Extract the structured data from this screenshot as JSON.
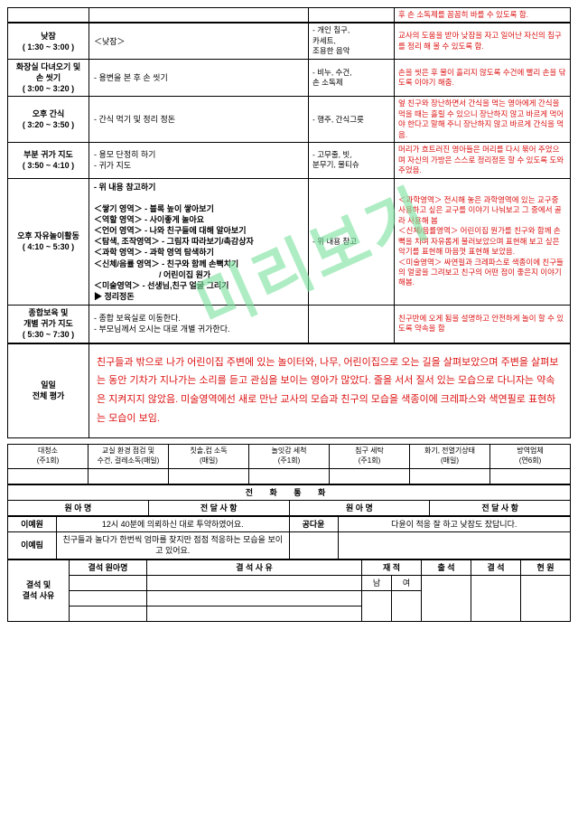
{
  "watermark": "미리보기",
  "schedule": {
    "topnote": "후 손 소독제를 꼼꼼히 바를 수 있도록 함.",
    "rows": [
      {
        "time": "낮잠\n( 1:30 ~ 3:00 )",
        "act": "＜낮잠＞",
        "mat": "- 개인 침구,\n카세트,\n조용한 음악",
        "note": "교사의 도움을 받아 낮잠을 자고 일어난 자신의 침구를 정리 해 볼 수 있도록 함."
      },
      {
        "time": "화장실 다녀오기 및\n손 씻기\n( 3:00 ~ 3:20 )",
        "act": "- 용변을 본 후 손 씻기",
        "mat": "- 비누, 수건,\n손 소독제",
        "note": "손을 씻은 후 물이 흘리지 않도록 수건에 빨리 손을 닦도록 이야기 해줌."
      },
      {
        "time": "오후 간식\n( 3:20 ~ 3:50 )",
        "act": "- 간식 먹기 및 정리 정돈",
        "mat": "- 행주, 간식그릇",
        "note": "엎 친구와 장난하면서 간식을 먹는 영아에게 간식을 먹을 때는 흘릴 수 있으니 장난하지 않고 바르게 먹어야 한다고 말해 주니 장난하지 않고 바르게 간식을 먹음."
      },
      {
        "time": "부분 귀가 지도\n( 3:50 ~ 4:10 )",
        "act": "- 용모 단정히 하기\n- 귀가 지도",
        "mat": "- 고무줄, 빗,\n분무기, 물티슈",
        "note": "머리가 흐트러진 영아들은 머리를 다시 묶어 주었으며 자신의 가방은 스스로 정리정돈 할 수 있도록 도와주었음."
      },
      {
        "time": "오후 자유놀이활동\n( 4:10 ~ 5:30 )",
        "act_html": true,
        "act": [
          "- 위 내용 참고하기",
          "",
          "＜쌓기 영역＞ - 블록 높이 쌓아보기",
          "＜역할 영역＞ - 사이좋게 놀아요",
          "＜언어 영역＞ - 나와 친구들에 대해 알아보기",
          "＜탐색, 조작영역＞ - 그림자 따라보기/촉감상자",
          "＜과학 영역＞ - 과학 영역 탐색하기",
          "＜신체/음률 영역＞ - 친구와 함께 손뼉치기",
          "　　　　　　　　/ 어린이집 원가",
          "＜미술영역＞ - 선생님,친구 얼굴 그리기",
          "▶ 정리정돈"
        ],
        "mat": "- 위 내용 참고",
        "note": "＜과학영역＞ 전시해 놓은 과학영역에 있는 교구중 사용하고 싶은 교구를 이야기 나눠보고 그 중에서 골라 사용해 봄\n＜신체/음률영역＞ 어린이집 원가를 친구와 함께 손뼉을 치며 자유롭게 불러보았으며 표현해 보고 싶은 악기를 표현해 마음껏 표현해 보았음.\n＜미술영역＞ 싸연필과 크레파스로 색종이에 친구들의 얼굴을 그려보고 친구의 어떤 점이 좋은지 이야기 해봄."
      },
      {
        "time": "종합보육 및\n개별 귀가 지도\n( 5:30 ~ 7:30 )",
        "act": "- 종합 보육실로 이동한다.\n- 부모님께서 오시는 대로 개별 귀가한다.",
        "mat": "",
        "note": "친구반에 오게 됨을 설명하고 안전하게 놀이 할 수 있도록 약속을 함"
      }
    ]
  },
  "evaluation": {
    "label": "일일\n전체 평가",
    "text": "친구들과 밖으로 나가 어린이집 주변에 있는 놀이터와, 나무, 어린이집으로 오는 길을 살펴보았으며 주변을 살펴보는 동안 기차가 지나가는 소리를 듣고 관심을 보이는 영아가 많았다. 줄을 서서 질서 있는 모습으로 다니자는 약속은 지켜지지 않았음. 미술영역에선 새로 만난 교사의 모습과 친구의 모습을 색종이에 크레파스와 색연필로 표현하는 모습이 보임."
  },
  "cleaning": [
    {
      "a": "대청소",
      "b": "(주1회)"
    },
    {
      "a": "교실 환경 점검 및\n수건, 걸레소독(매일)",
      "b": ""
    },
    {
      "a": "칫솔,컵 소독",
      "b": "(매일)"
    },
    {
      "a": "놀잇감 세척",
      "b": "(주1회)"
    },
    {
      "a": "침구 세탁",
      "b": "(주1회)"
    },
    {
      "a": "화기, 전열기상태",
      "b": "(매일)"
    },
    {
      "a": "방역업체",
      "b": "(연6회)"
    }
  ],
  "cleaning_blank_cols": 7,
  "phone": {
    "title": "전 화 통 화",
    "head": [
      "원 아 명",
      "전 달 사 항",
      "원 아 명",
      "전 달 사 항"
    ],
    "rows": [
      [
        "이예원",
        "12시 40분에 의뢰하신 대로 투약하였어요.",
        "공다윤",
        "다윤이 적응 잘 하고 낮잠도 잤답니다."
      ],
      [
        "이예림",
        "친구들과 놀다가 한번씩 엄마를 찾지만 점점 적응하는 모습을 보이고 있어요.",
        "",
        ""
      ]
    ]
  },
  "attendance": {
    "label": "결석 및\n결석 사유",
    "cols": [
      "결석 원아명",
      "결 석 사 유",
      "재 적",
      "출 석",
      "결 석",
      "현 원"
    ],
    "jaejeok": {
      "m": "남",
      "f": "여"
    }
  }
}
